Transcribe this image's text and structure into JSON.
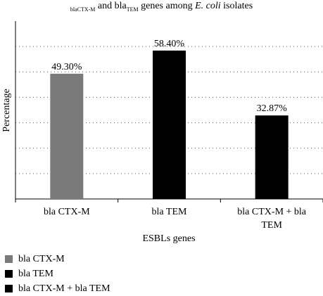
{
  "chart_data": {
    "type": "bar",
    "title_parts": {
      "prefix_sub": "blaCTX-M",
      "text1": " and bla",
      "sub2": "TEM",
      "text2": " genes among ",
      "italic": "E. coli",
      "text3": " isolates"
    },
    "categories": [
      "bla CTX-M",
      "bla TEM",
      "bla CTX-M + bla TEM"
    ],
    "category_tick_lines": [
      [
        "bla CTX-M"
      ],
      [
        "bla TEM"
      ],
      [
        "bla CTX-M + bla",
        "TEM"
      ]
    ],
    "values": [
      49.3,
      58.4,
      32.87
    ],
    "data_labels": [
      "49.30%",
      "58.40%",
      "32.87%"
    ],
    "colors": [
      "#7a7a7a",
      "#000000",
      "#000000"
    ],
    "xlabel": "ESBLs genes",
    "ylabel": "Percentage",
    "ylim": [
      0,
      70
    ],
    "gridlines": [
      10,
      20,
      30,
      40,
      50,
      60
    ],
    "grid": "horizontal-dotted",
    "legend_position": "bottom-left",
    "legend": [
      {
        "label": "bla CTX-M",
        "color": "#7a7a7a"
      },
      {
        "label": "bla TEM",
        "color": "#000000"
      },
      {
        "label": "bla CTX-M + bla TEM",
        "color": "#000000"
      }
    ]
  }
}
